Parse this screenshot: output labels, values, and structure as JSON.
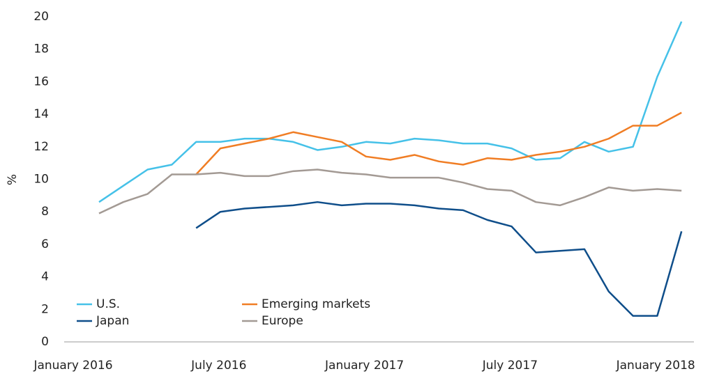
{
  "chart_data": {
    "type": "line",
    "y_label": "%",
    "categories": [
      "January 2016",
      null,
      null,
      null,
      null,
      null,
      "July 2016",
      null,
      null,
      null,
      null,
      null,
      "January 2017",
      null,
      null,
      null,
      null,
      null,
      "July 2017",
      null,
      null,
      null,
      null,
      null,
      "January 2018"
    ],
    "series": [
      {
        "name": "U.S.",
        "color": "#45c1e8",
        "values": [
          8.6,
          9.6,
          10.6,
          10.9,
          12.3,
          12.3,
          12.5,
          12.5,
          12.3,
          11.8,
          12.0,
          12.3,
          12.2,
          12.5,
          12.4,
          12.2,
          12.2,
          11.9,
          11.2,
          11.3,
          12.3,
          11.7,
          12.0,
          16.3,
          19.7
        ]
      },
      {
        "name": "Emerging markets",
        "color": "#f07d24",
        "values": [
          null,
          null,
          null,
          null,
          10.3,
          11.9,
          12.2,
          12.5,
          12.9,
          12.6,
          12.3,
          11.4,
          11.2,
          11.5,
          11.1,
          10.9,
          11.3,
          11.2,
          11.5,
          11.7,
          12.0,
          12.5,
          13.3,
          13.3,
          14.1
        ]
      },
      {
        "name": "Japan",
        "color": "#0f4e8a",
        "values": [
          null,
          null,
          null,
          null,
          7.0,
          8.0,
          8.2,
          8.3,
          8.4,
          8.6,
          8.4,
          8.5,
          8.5,
          8.4,
          8.2,
          8.1,
          7.5,
          7.1,
          5.5,
          5.6,
          5.7,
          3.1,
          1.6,
          1.6,
          6.8
        ]
      },
      {
        "name": "Europe",
        "color": "#a39a94",
        "values": [
          7.9,
          8.6,
          9.1,
          10.3,
          10.3,
          10.4,
          10.2,
          10.2,
          10.5,
          10.6,
          10.4,
          10.3,
          10.1,
          10.1,
          10.1,
          9.8,
          9.4,
          9.3,
          8.6,
          8.4,
          8.9,
          9.5,
          9.3,
          9.4,
          9.3
        ]
      }
    ],
    "ylim": [
      0,
      20
    ],
    "yticks": [
      0,
      2,
      4,
      6,
      8,
      10,
      12,
      14,
      16,
      18,
      20
    ],
    "grid": false
  }
}
